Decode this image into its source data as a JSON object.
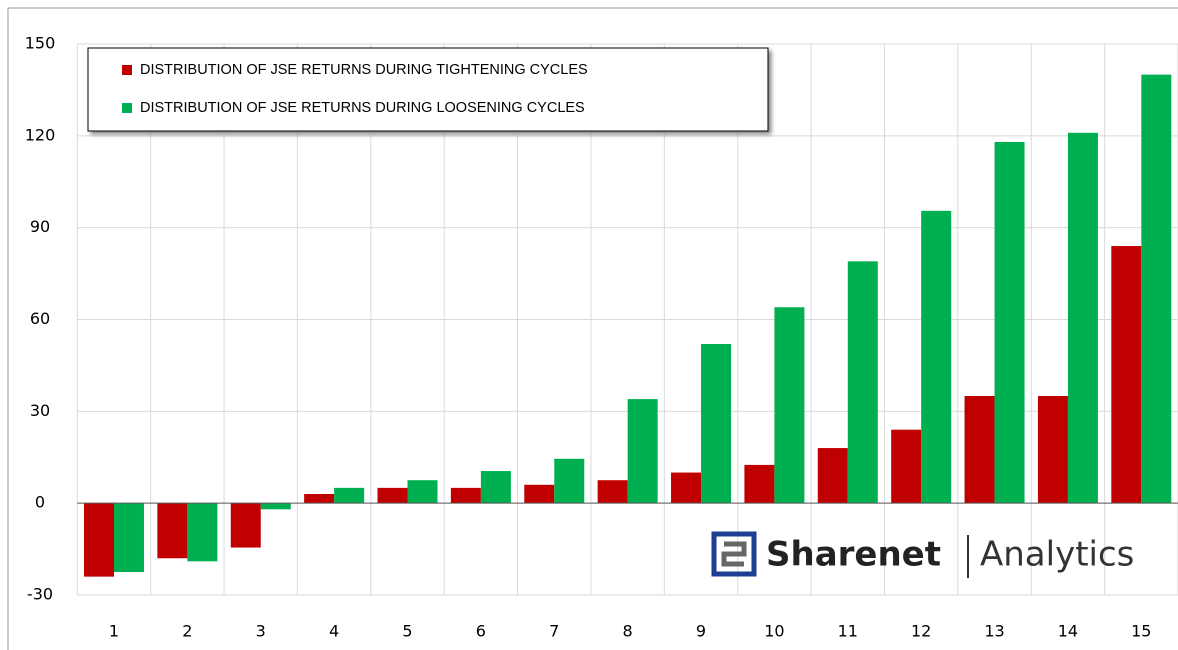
{
  "chart_data": {
    "type": "bar",
    "categories": [
      "1",
      "2",
      "3",
      "4",
      "5",
      "6",
      "7",
      "8",
      "9",
      "10",
      "11",
      "12",
      "13",
      "14",
      "15"
    ],
    "series": [
      {
        "name": "DISTRIBUTION OF JSE RETURNS DURING TIGHTENING CYCLES",
        "color": "#c00000",
        "values": [
          -24,
          -18,
          -14.5,
          3,
          5,
          5,
          6,
          7.5,
          10,
          12.5,
          18,
          24,
          35,
          35,
          84
        ]
      },
      {
        "name": "DISTRIBUTION OF JSE RETURNS DURING LOOSENING CYCLES",
        "color": "#00b050",
        "values": [
          -22.5,
          -19,
          -2,
          5,
          7.5,
          10.5,
          14.5,
          34,
          52,
          64,
          79,
          95.5,
          118,
          121,
          140
        ]
      }
    ],
    "ylim": [
      -30,
      150
    ],
    "yticks": [
      -30,
      0,
      30,
      60,
      90,
      120,
      150
    ],
    "grid": true,
    "legend": "top-left",
    "watermark": {
      "brand": "Sharenet",
      "product": "Analytics"
    }
  }
}
